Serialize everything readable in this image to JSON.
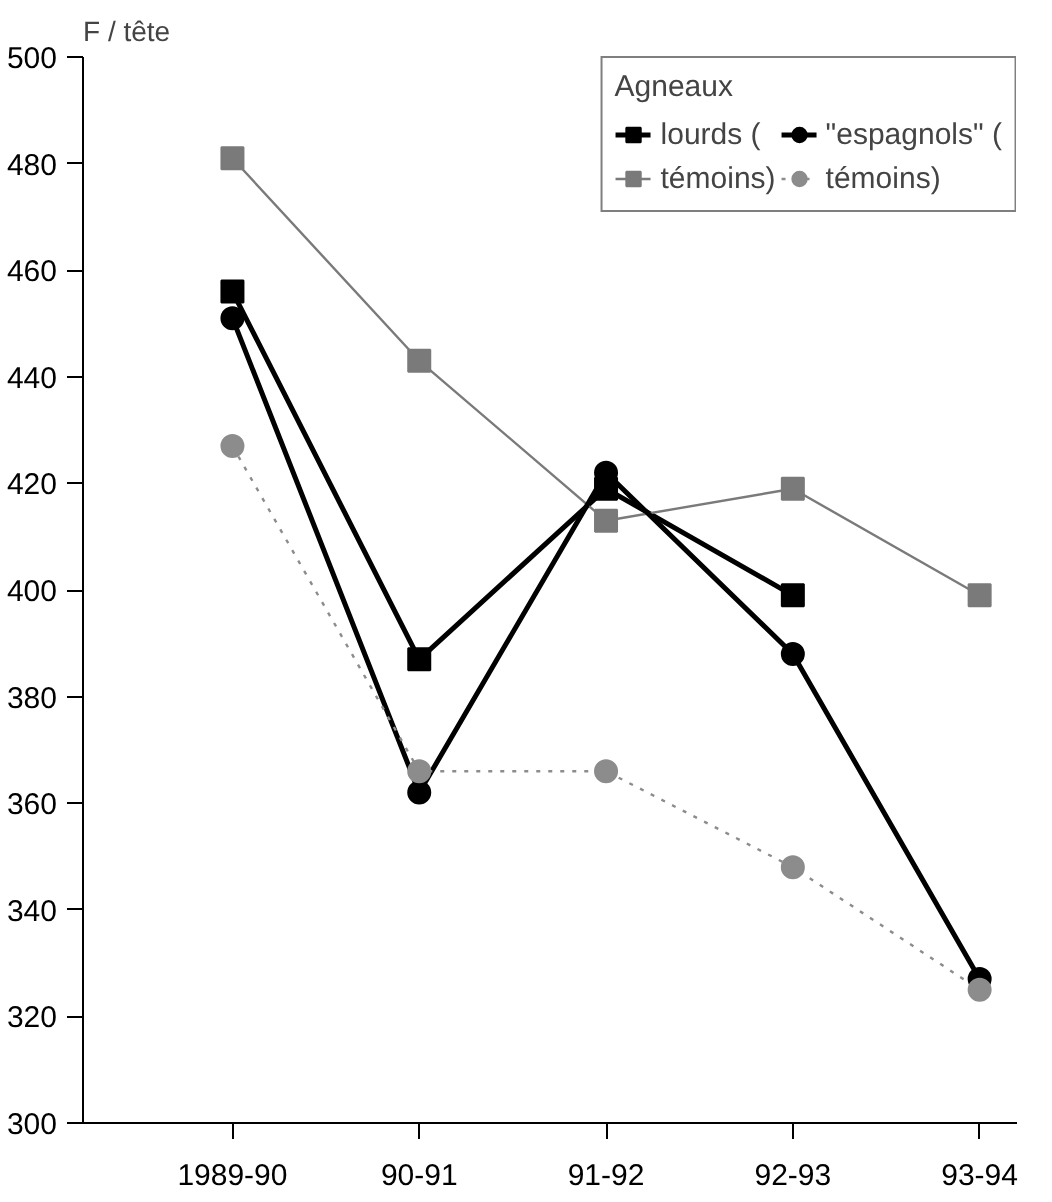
{
  "chart_data": {
    "type": "line",
    "ylabel": "F / tête",
    "legend_title": "Agneaux",
    "categories": [
      "1989-90",
      "90-91",
      "91-92",
      "92-93",
      "93-94"
    ],
    "series": [
      {
        "name": "lourds (",
        "color": "#000000",
        "marker": "square",
        "line_style": "solid",
        "values": [
          456,
          387,
          419,
          399,
          null
        ]
      },
      {
        "name": "témoins)",
        "color": "#7a7a7a",
        "marker": "square",
        "line_style": "solid",
        "values": [
          481,
          443,
          413,
          419,
          399
        ]
      },
      {
        "name": "\"espagnols\" (",
        "color": "#000000",
        "marker": "circle",
        "line_style": "solid",
        "values": [
          451,
          362,
          422,
          388,
          327
        ]
      },
      {
        "name": "témoins)",
        "color": "#8c8c8c",
        "marker": "circle",
        "line_style": "dotted",
        "values": [
          427,
          366,
          366,
          348,
          325
        ]
      }
    ],
    "ylim": [
      300,
      500
    ],
    "yticks": [
      300,
      320,
      340,
      360,
      380,
      400,
      420,
      440,
      460,
      480,
      500
    ],
    "grid": false,
    "legend": "top right"
  }
}
